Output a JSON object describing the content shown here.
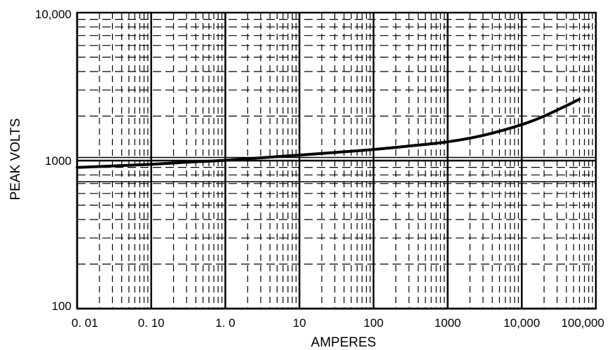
{
  "chart_data": {
    "type": "line",
    "title": "",
    "xlabel": "AMPERES",
    "ylabel": "PEAK VOLTS",
    "x_scale": "log",
    "y_scale": "log",
    "xlim": [
      0.01,
      100000
    ],
    "ylim": [
      100,
      10000
    ],
    "grid": true,
    "x_ticks": [
      {
        "value": 0.01,
        "label": "0. 01"
      },
      {
        "value": 0.1,
        "label": "0. 10"
      },
      {
        "value": 1,
        "label": "1. 0"
      },
      {
        "value": 10,
        "label": "10"
      },
      {
        "value": 100,
        "label": "100"
      },
      {
        "value": 1000,
        "label": "1000"
      },
      {
        "value": 10000,
        "label": "10,000"
      },
      {
        "value": 100000,
        "label": "100,000"
      }
    ],
    "y_ticks": [
      {
        "value": 100,
        "label": "100"
      },
      {
        "value": 1000,
        "label": "1000"
      },
      {
        "value": 10000,
        "label": "10,000"
      }
    ],
    "series": [
      {
        "name": "",
        "color": "#000000",
        "x": [
          0.01,
          0.03,
          0.1,
          0.3,
          1,
          3,
          10,
          30,
          100,
          300,
          1000,
          3000,
          10000,
          20000,
          40000,
          60000
        ],
        "y": [
          900,
          920,
          945,
          975,
          1005,
          1045,
          1090,
          1135,
          1190,
          1255,
          1340,
          1480,
          1750,
          2000,
          2350,
          2600
        ]
      }
    ],
    "reference_lines": [
      {
        "axis": "y",
        "value": 1050
      },
      {
        "axis": "y",
        "value": 720
      }
    ]
  }
}
